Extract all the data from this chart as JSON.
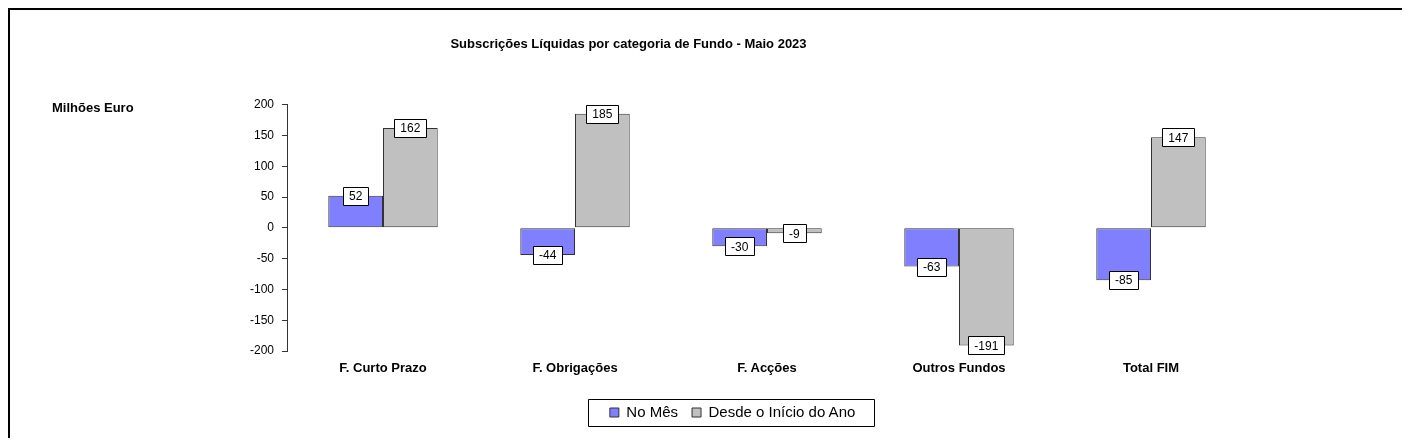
{
  "chart_data": {
    "type": "bar",
    "title": "Subscrições Líquidas por categoria de Fundo - Maio 2023",
    "annotations": [
      "Milhões Euro"
    ],
    "categories": [
      "F. Curto Prazo",
      "F. Obrigações",
      "F. Acções",
      "Outros Fundos",
      "Total FIM"
    ],
    "series": [
      {
        "name": "No Mês",
        "color": "#8080ff",
        "values": [
          52,
          -44,
          -30,
          -63,
          -85
        ]
      },
      {
        "name": "Desde o Início do Ano",
        "color": "#c0c0c0",
        "values": [
          162,
          185,
          -9,
          -191,
          147
        ]
      }
    ],
    "ylim": [
      -200,
      200
    ],
    "yticks": [
      -200,
      -150,
      -100,
      -50,
      0,
      50,
      100,
      150,
      200
    ],
    "data_labels": true,
    "legend": "bottom",
    "grid": false
  }
}
